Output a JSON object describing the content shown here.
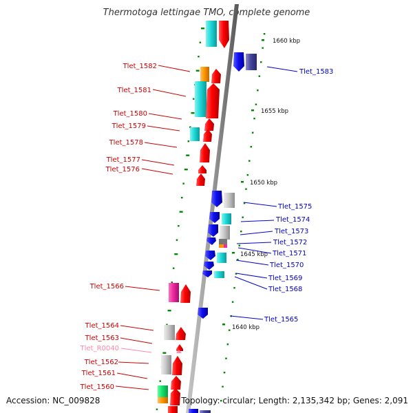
{
  "title": "Thermotoga lettingae TMO, complete genome",
  "footer": {
    "accession": "Accession: NC_009828",
    "topology": "Topology: circular; Length: 2,135,342 bp; Genes: 2,091"
  },
  "colors": {
    "forward_label": "#cc0000",
    "reverse_label": "#0000cc",
    "rna_label": "#ff88aa",
    "gc_tick": "#008800",
    "backbone": "#888888"
  },
  "kbp_markers": [
    "1660 kbp",
    "1655 kbp",
    "1650 kbp",
    "1645 kbp",
    "1640 kbp"
  ],
  "forward_genes": [
    "Tlet_1582",
    "Tlet_1581",
    "Tlet_1580",
    "Tlet_1579",
    "Tlet_1578",
    "Tlet_1577",
    "Tlet_1576",
    "Tlet_1566",
    "Tlet_1564",
    "Tlet_1563",
    "Tlet_R0040",
    "Tlet_1562",
    "Tlet_1561",
    "Tlet_1560"
  ],
  "reverse_genes": [
    "Tlet_1583",
    "Tlet_1575",
    "Tlet_1574",
    "Tlet_1573",
    "Tlet_1572",
    "Tlet_1571",
    "Tlet_1570",
    "Tlet_1569",
    "Tlet_1568",
    "Tlet_1565"
  ]
}
